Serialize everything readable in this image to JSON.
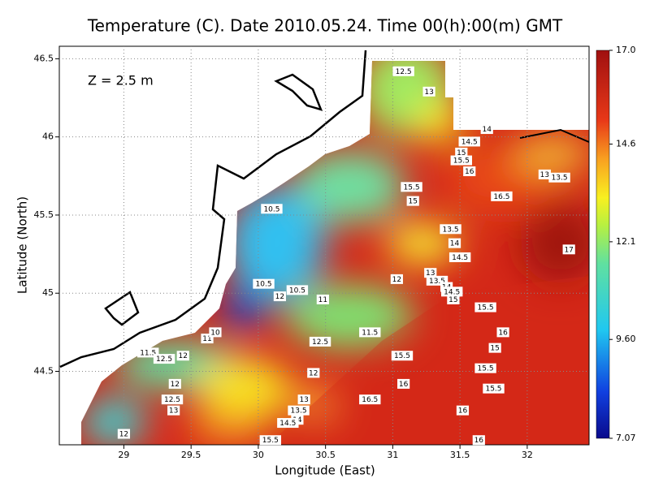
{
  "chart_data": {
    "type": "map",
    "title": "Temperature (C). Date 2010.05.24. Time 00(h):00(m) GMT",
    "annotation": "Z = 2.5 m",
    "xlabel": "Longitude (East)",
    "ylabel": "Latitude (North)",
    "xlim": [
      28.52,
      32.46
    ],
    "ylim": [
      44.03,
      46.58
    ],
    "xticks": [
      29,
      29.5,
      30,
      30.5,
      31,
      31.5,
      32
    ],
    "yticks": [
      44.5,
      45,
      45.5,
      46,
      46.5
    ],
    "grid": true,
    "clim": [
      7.07,
      17.0
    ],
    "cticks": [
      {
        "value": 17.0,
        "label": "17.0"
      },
      14.6,
      12.1,
      {
        "value": 9.6,
        "label": "9.60"
      },
      7.07
    ],
    "contour_labels": [
      {
        "value": 12.5,
        "lon": 31.08,
        "lat": 46.42
      },
      {
        "value": 13,
        "lon": 31.27,
        "lat": 46.29
      },
      {
        "value": 14,
        "lon": 31.7,
        "lat": 46.05
      },
      {
        "value": 14.5,
        "lon": 31.57,
        "lat": 45.97
      },
      {
        "value": 15,
        "lon": 31.51,
        "lat": 45.9
      },
      {
        "value": 15.5,
        "lon": 31.51,
        "lat": 45.85
      },
      {
        "value": 16,
        "lon": 31.57,
        "lat": 45.78
      },
      {
        "value": 15.5,
        "lon": 31.14,
        "lat": 45.68
      },
      {
        "value": 15,
        "lon": 31.15,
        "lat": 45.59
      },
      {
        "value": 16.5,
        "lon": 31.81,
        "lat": 45.62
      },
      {
        "value": 13,
        "lon": 32.13,
        "lat": 45.76
      },
      {
        "value": 13.5,
        "lon": 32.24,
        "lat": 45.74
      },
      {
        "value": 10.5,
        "lon": 30.1,
        "lat": 45.54
      },
      {
        "value": 13.5,
        "lon": 31.43,
        "lat": 45.41
      },
      {
        "value": 14,
        "lon": 31.46,
        "lat": 45.32
      },
      {
        "value": 14.5,
        "lon": 31.5,
        "lat": 45.23
      },
      {
        "value": 17,
        "lon": 32.31,
        "lat": 45.28
      },
      {
        "value": 12,
        "lon": 31.03,
        "lat": 45.09
      },
      {
        "value": 13,
        "lon": 31.28,
        "lat": 45.13
      },
      {
        "value": 13.5,
        "lon": 31.33,
        "lat": 45.08
      },
      {
        "value": 14,
        "lon": 31.4,
        "lat": 45.04
      },
      {
        "value": 14.5,
        "lon": 31.44,
        "lat": 45.01
      },
      {
        "value": 15,
        "lon": 31.45,
        "lat": 44.96
      },
      {
        "value": 15.5,
        "lon": 31.69,
        "lat": 44.91
      },
      {
        "value": 10.5,
        "lon": 30.04,
        "lat": 45.06
      },
      {
        "value": 10.5,
        "lon": 30.29,
        "lat": 45.02
      },
      {
        "value": 12,
        "lon": 30.16,
        "lat": 44.98
      },
      {
        "value": 11,
        "lon": 30.48,
        "lat": 44.96
      },
      {
        "value": 11,
        "lon": 29.62,
        "lat": 44.71
      },
      {
        "value": 10,
        "lon": 29.68,
        "lat": 44.75
      },
      {
        "value": 11.5,
        "lon": 30.83,
        "lat": 44.75
      },
      {
        "value": 16,
        "lon": 31.82,
        "lat": 44.75
      },
      {
        "value": 15,
        "lon": 31.76,
        "lat": 44.65
      },
      {
        "value": 12.5,
        "lon": 30.46,
        "lat": 44.69
      },
      {
        "value": 11.5,
        "lon": 29.18,
        "lat": 44.62
      },
      {
        "value": 12.5,
        "lon": 29.3,
        "lat": 44.58
      },
      {
        "value": 12,
        "lon": 29.44,
        "lat": 44.6
      },
      {
        "value": 15.5,
        "lon": 31.07,
        "lat": 44.6
      },
      {
        "value": 15.5,
        "lon": 31.69,
        "lat": 44.52
      },
      {
        "value": 12,
        "lon": 30.41,
        "lat": 44.49
      },
      {
        "value": 16,
        "lon": 31.08,
        "lat": 44.42
      },
      {
        "value": 15.5,
        "lon": 31.75,
        "lat": 44.39
      },
      {
        "value": 12,
        "lon": 29.38,
        "lat": 44.42
      },
      {
        "value": 12.5,
        "lon": 29.36,
        "lat": 44.32
      },
      {
        "value": 13,
        "lon": 29.37,
        "lat": 44.25
      },
      {
        "value": 16.5,
        "lon": 30.83,
        "lat": 44.32
      },
      {
        "value": 13,
        "lon": 30.34,
        "lat": 44.32
      },
      {
        "value": 13.5,
        "lon": 30.3,
        "lat": 44.25
      },
      {
        "value": 14,
        "lon": 30.29,
        "lat": 44.19
      },
      {
        "value": 14.5,
        "lon": 30.22,
        "lat": 44.17
      },
      {
        "value": 16,
        "lon": 31.52,
        "lat": 44.25
      },
      {
        "value": 12,
        "lon": 29.0,
        "lat": 44.1
      },
      {
        "value": 15.5,
        "lon": 30.09,
        "lat": 44.06
      },
      {
        "value": 16,
        "lon": 31.64,
        "lat": 44.06
      }
    ]
  }
}
